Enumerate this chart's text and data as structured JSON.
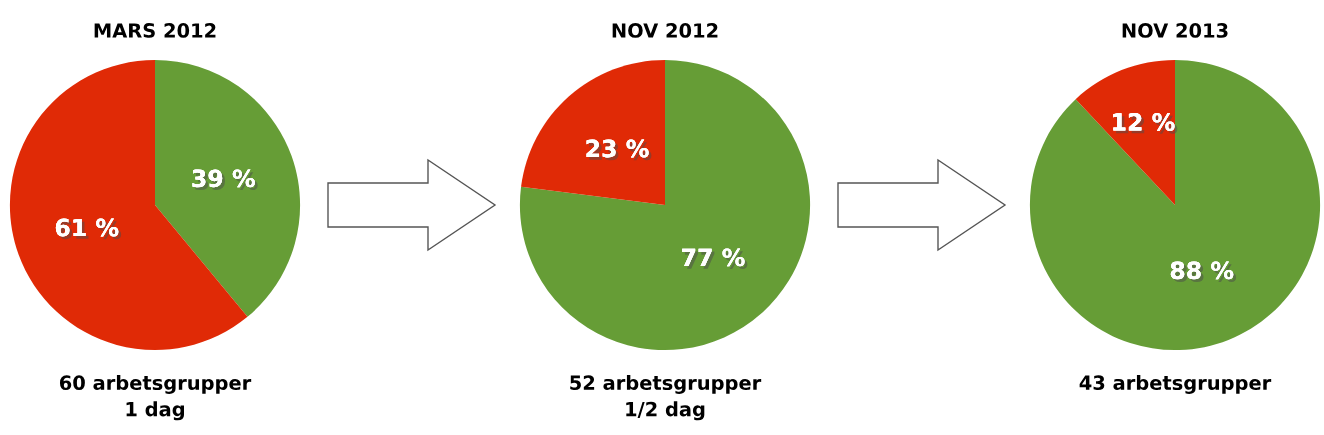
{
  "chart_data": [
    {
      "type": "pie",
      "title": "MARS 2012",
      "categories": [
        null,
        null
      ],
      "values": [
        39,
        61
      ],
      "colors": [
        "#669d36",
        "#e02a06"
      ],
      "value_labels": [
        "39 %",
        "61 %"
      ],
      "annotations": [
        "60 arbetsgrupper\n1 dag"
      ]
    },
    {
      "type": "pie",
      "title": "NOV 2012",
      "categories": [
        null,
        null
      ],
      "values": [
        77,
        23
      ],
      "colors": [
        "#669d36",
        "#e02a06"
      ],
      "value_labels": [
        "77 %",
        "23 %"
      ],
      "annotations": [
        "52 arbetsgrupper\n1/2 dag"
      ]
    },
    {
      "type": "pie",
      "title": "NOV 2013",
      "categories": [
        null,
        null
      ],
      "values": [
        88,
        12
      ],
      "colors": [
        "#669d36",
        "#e02a06"
      ],
      "value_labels": [
        "88 %",
        "12 %"
      ],
      "annotations": [
        "43 arbetsgrupper"
      ]
    }
  ]
}
